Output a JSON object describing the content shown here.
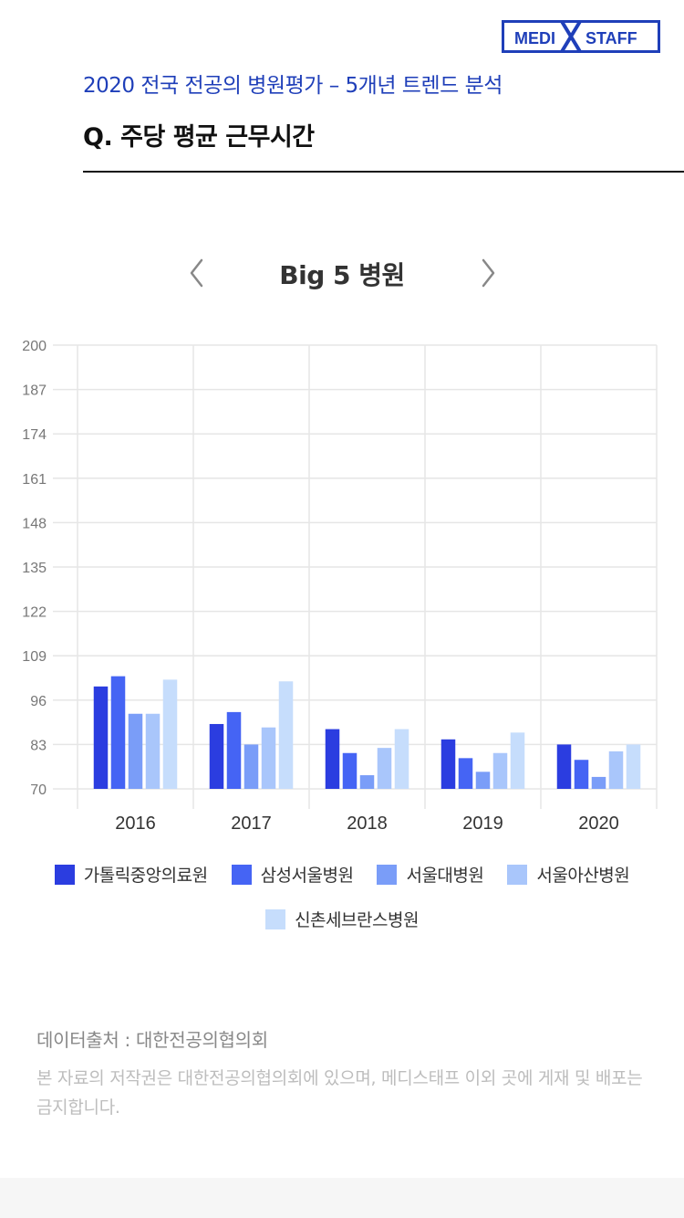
{
  "brand": {
    "left": "MEDI",
    "right": "STAFF",
    "color": "#1f3fb9"
  },
  "header": {
    "subtitle": "2020 전국 전공의 병원평가 – 5개년 트렌드 분석",
    "question": "Q. 주당 평균 근무시간"
  },
  "nav": {
    "prev_icon": "chevron-left-icon",
    "next_icon": "chevron-right-icon"
  },
  "chart_data": {
    "type": "bar",
    "title": "Big 5 병원",
    "categories": [
      "2016",
      "2017",
      "2018",
      "2019",
      "2020"
    ],
    "series": [
      {
        "name": "가톨릭중앙의료원",
        "color": "#2b3de0",
        "values": [
          100,
          89,
          87.5,
          84.5,
          83
        ]
      },
      {
        "name": "삼성서울병원",
        "color": "#4564f4",
        "values": [
          103,
          92.5,
          80.5,
          79,
          78.5
        ]
      },
      {
        "name": "서울대병원",
        "color": "#7a9df8",
        "values": [
          92,
          83,
          74,
          75,
          73.5
        ]
      },
      {
        "name": "서울아산병원",
        "color": "#a9c6fb",
        "values": [
          92,
          88,
          82,
          80.5,
          81
        ]
      },
      {
        "name": "신촌세브란스병원",
        "color": "#c6ddfc",
        "values": [
          102,
          101.5,
          87.5,
          86.5,
          83
        ]
      }
    ],
    "yticks": [
      "200",
      "187",
      "174",
      "161",
      "148",
      "135",
      "122",
      "109",
      "96",
      "83",
      "70"
    ],
    "ylim": [
      70,
      200
    ],
    "grid": true,
    "legend": "bottom"
  },
  "source": {
    "title": "데이터출처 : 대한전공의협의회",
    "note": "본 자료의 저작권은 대한전공의협의회에 있으며, 메디스태프 이외 곳에 게재 및 배포는 금지합니다."
  }
}
